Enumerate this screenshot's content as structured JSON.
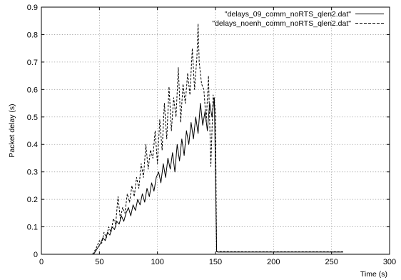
{
  "chart_data": {
    "type": "line",
    "title": "",
    "xlabel": "Time (s)",
    "ylabel": "Packet delay (s)",
    "xlim": [
      0,
      300
    ],
    "ylim": [
      0,
      0.9
    ],
    "xticks": [
      0,
      50,
      100,
      150,
      200,
      250,
      300
    ],
    "yticks": [
      0,
      0.1,
      0.2,
      0.3,
      0.4,
      0.5,
      0.6,
      0.7,
      0.8,
      0.9
    ],
    "xtick_labels": [
      "0",
      "50",
      "100",
      "150",
      "200",
      "250",
      "300"
    ],
    "ytick_labels": [
      "0",
      "0.1",
      "0.2",
      "0.3",
      "0.4",
      "0.5",
      "0.6",
      "0.7",
      "0.8",
      "0.9"
    ],
    "grid": true,
    "legend_position": "top-right",
    "series": [
      {
        "name": "\"delays_09_comm_noRTS_qlen2.dat\"",
        "style": "solid",
        "color": "#000000",
        "x": [
          45,
          48,
          51,
          53,
          55,
          57,
          59,
          61,
          63,
          65,
          67,
          69,
          71,
          73,
          75,
          77,
          79,
          81,
          83,
          85,
          87,
          89,
          91,
          93,
          95,
          97,
          99,
          101,
          103,
          105,
          107,
          109,
          111,
          113,
          115,
          117,
          119,
          121,
          123,
          125,
          127,
          129,
          131,
          133,
          135,
          137,
          139,
          141,
          143,
          145,
          147,
          149,
          150,
          150.5,
          151,
          152,
          180,
          220,
          260
        ],
        "y": [
          0.0,
          0.02,
          0.04,
          0.06,
          0.05,
          0.08,
          0.07,
          0.1,
          0.09,
          0.12,
          0.11,
          0.14,
          0.12,
          0.15,
          0.17,
          0.14,
          0.18,
          0.16,
          0.2,
          0.18,
          0.22,
          0.19,
          0.24,
          0.21,
          0.26,
          0.23,
          0.28,
          0.3,
          0.26,
          0.33,
          0.28,
          0.35,
          0.31,
          0.37,
          0.3,
          0.4,
          0.34,
          0.42,
          0.36,
          0.45,
          0.4,
          0.48,
          0.42,
          0.5,
          0.44,
          0.55,
          0.47,
          0.52,
          0.45,
          0.55,
          0.5,
          0.57,
          0.3,
          0.15,
          0.01,
          0.008,
          0.008,
          0.008,
          0.008
        ]
      },
      {
        "name": "\"delays_noenh_comm_noRTS_qlen2.dat\"",
        "style": "dashed",
        "color": "#000000",
        "x": [
          44,
          47,
          50,
          52,
          54,
          56,
          58,
          60,
          62,
          64,
          66,
          68,
          70,
          72,
          74,
          76,
          78,
          80,
          82,
          84,
          86,
          88,
          90,
          92,
          94,
          96,
          98,
          100,
          102,
          104,
          106,
          108,
          110,
          112,
          114,
          116,
          118,
          120,
          122,
          124,
          126,
          128,
          130,
          132,
          134,
          135,
          136,
          138,
          140,
          142,
          144,
          146,
          148,
          150,
          150.5,
          151,
          152,
          180,
          220,
          260
        ],
        "y": [
          0.0,
          0.02,
          0.05,
          0.04,
          0.08,
          0.06,
          0.1,
          0.08,
          0.13,
          0.11,
          0.21,
          0.13,
          0.17,
          0.15,
          0.22,
          0.19,
          0.25,
          0.21,
          0.28,
          0.24,
          0.33,
          0.28,
          0.4,
          0.31,
          0.38,
          0.35,
          0.45,
          0.33,
          0.49,
          0.38,
          0.55,
          0.42,
          0.61,
          0.45,
          0.57,
          0.5,
          0.68,
          0.48,
          0.62,
          0.55,
          0.66,
          0.58,
          0.75,
          0.6,
          0.72,
          0.84,
          0.7,
          0.62,
          0.6,
          0.48,
          0.65,
          0.32,
          0.58,
          0.52,
          0.25,
          0.01,
          0.01,
          0.009,
          0.009,
          0.009
        ]
      }
    ]
  }
}
